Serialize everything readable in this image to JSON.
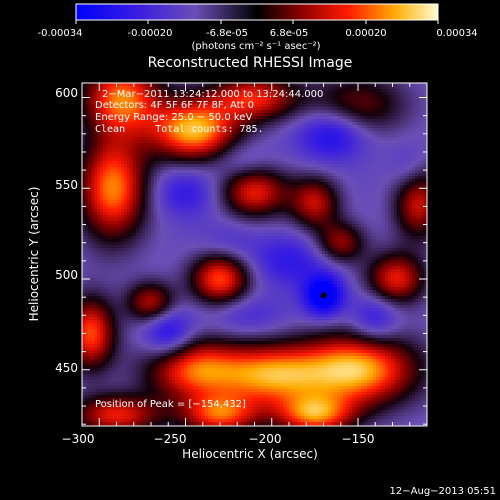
{
  "colorbar": {
    "ticks": [
      "-0.00034",
      "-0.00020",
      "-6.8e-05",
      "6.8e-05",
      "0.00020",
      "0.00034"
    ],
    "unit_label": "(photons cm⁻² s⁻¹ asec⁻²)",
    "range": [
      -0.00034,
      0.00034
    ]
  },
  "chart_data": {
    "type": "heatmap",
    "title": "Reconstructed RHESSI Image",
    "xlabel": "Heliocentric X (arcsec)",
    "ylabel": "Heliocentric Y (arcsec)",
    "xlim": [
      -310,
      -110
    ],
    "ylim": [
      419,
      608
    ],
    "xticks": [
      -300,
      -250,
      -200,
      -150
    ],
    "yticks": [
      450,
      500,
      550,
      600
    ],
    "xtick_labels": [
      "−300",
      "−250",
      "−200",
      "−150"
    ],
    "ytick_labels": [
      "450",
      "500",
      "550",
      "600"
    ],
    "annotations": [
      "2−Mar−2011 13:24:12.000 to 13:24:44.000",
      "Detectors: 4F 5F 6F 7F 8F, Att 0",
      "Energy Range: 25.0 − 50.0 keV",
      "Clean     Total counts: 785."
    ],
    "peak_label": "Position of Peak = [−154,432]",
    "marker": {
      "x": -170,
      "y": 491
    },
    "blobs": [
      {
        "x": -287,
        "y": 600,
        "value": 0.00028,
        "sx": 16,
        "sy": 14
      },
      {
        "x": -245,
        "y": 582,
        "value": 0.00034,
        "sx": 18,
        "sy": 12
      },
      {
        "x": -210,
        "y": 600,
        "value": 0.00022,
        "sx": 18,
        "sy": 9
      },
      {
        "x": -150,
        "y": 596,
        "value": 0.00012,
        "sx": 20,
        "sy": 12
      },
      {
        "x": -292,
        "y": 550,
        "value": 0.0003,
        "sx": 14,
        "sy": 20
      },
      {
        "x": -210,
        "y": 548,
        "value": 0.00022,
        "sx": 14,
        "sy": 10
      },
      {
        "x": -175,
        "y": 542,
        "value": 0.00018,
        "sx": 10,
        "sy": 10
      },
      {
        "x": -115,
        "y": 542,
        "value": 0.0002,
        "sx": 10,
        "sy": 14
      },
      {
        "x": -160,
        "y": 520,
        "value": 0.00015,
        "sx": 10,
        "sy": 8
      },
      {
        "x": -230,
        "y": 500,
        "value": 0.00026,
        "sx": 12,
        "sy": 10
      },
      {
        "x": -270,
        "y": 487,
        "value": 0.00018,
        "sx": 10,
        "sy": 8
      },
      {
        "x": -128,
        "y": 500,
        "value": 0.00022,
        "sx": 12,
        "sy": 10
      },
      {
        "x": -305,
        "y": 470,
        "value": 0.00026,
        "sx": 10,
        "sy": 14
      },
      {
        "x": -245,
        "y": 450,
        "value": 0.00026,
        "sx": 20,
        "sy": 12
      },
      {
        "x": -200,
        "y": 447,
        "value": 0.00028,
        "sx": 22,
        "sy": 12
      },
      {
        "x": -150,
        "y": 450,
        "value": 0.00034,
        "sx": 24,
        "sy": 14
      },
      {
        "x": -290,
        "y": 425,
        "value": 0.00022,
        "sx": 18,
        "sy": 8
      },
      {
        "x": -230,
        "y": 425,
        "value": 0.00024,
        "sx": 16,
        "sy": 8
      },
      {
        "x": -175,
        "y": 425,
        "value": 0.00026,
        "sx": 16,
        "sy": 8
      },
      {
        "x": -165,
        "y": 580,
        "value": -0.00024,
        "sx": 14,
        "sy": 10
      },
      {
        "x": -250,
        "y": 548,
        "value": -0.00018,
        "sx": 14,
        "sy": 10
      },
      {
        "x": -218,
        "y": 565,
        "value": -0.00014,
        "sx": 12,
        "sy": 8
      },
      {
        "x": -190,
        "y": 510,
        "value": -0.00018,
        "sx": 16,
        "sy": 10
      },
      {
        "x": -170,
        "y": 491,
        "value": -0.00034,
        "sx": 8,
        "sy": 8
      },
      {
        "x": -140,
        "y": 478,
        "value": -0.0002,
        "sx": 10,
        "sy": 10
      },
      {
        "x": -260,
        "y": 470,
        "value": -0.00024,
        "sx": 10,
        "sy": 10
      },
      {
        "x": -215,
        "y": 480,
        "value": -0.00014,
        "sx": 16,
        "sy": 8
      },
      {
        "x": -225,
        "y": 520,
        "value": -0.00012,
        "sx": 12,
        "sy": 8
      },
      {
        "x": -120,
        "y": 560,
        "value": -0.00014,
        "sx": 8,
        "sy": 10
      }
    ]
  },
  "footer": {
    "date": "12−Aug−2013 05:51"
  }
}
